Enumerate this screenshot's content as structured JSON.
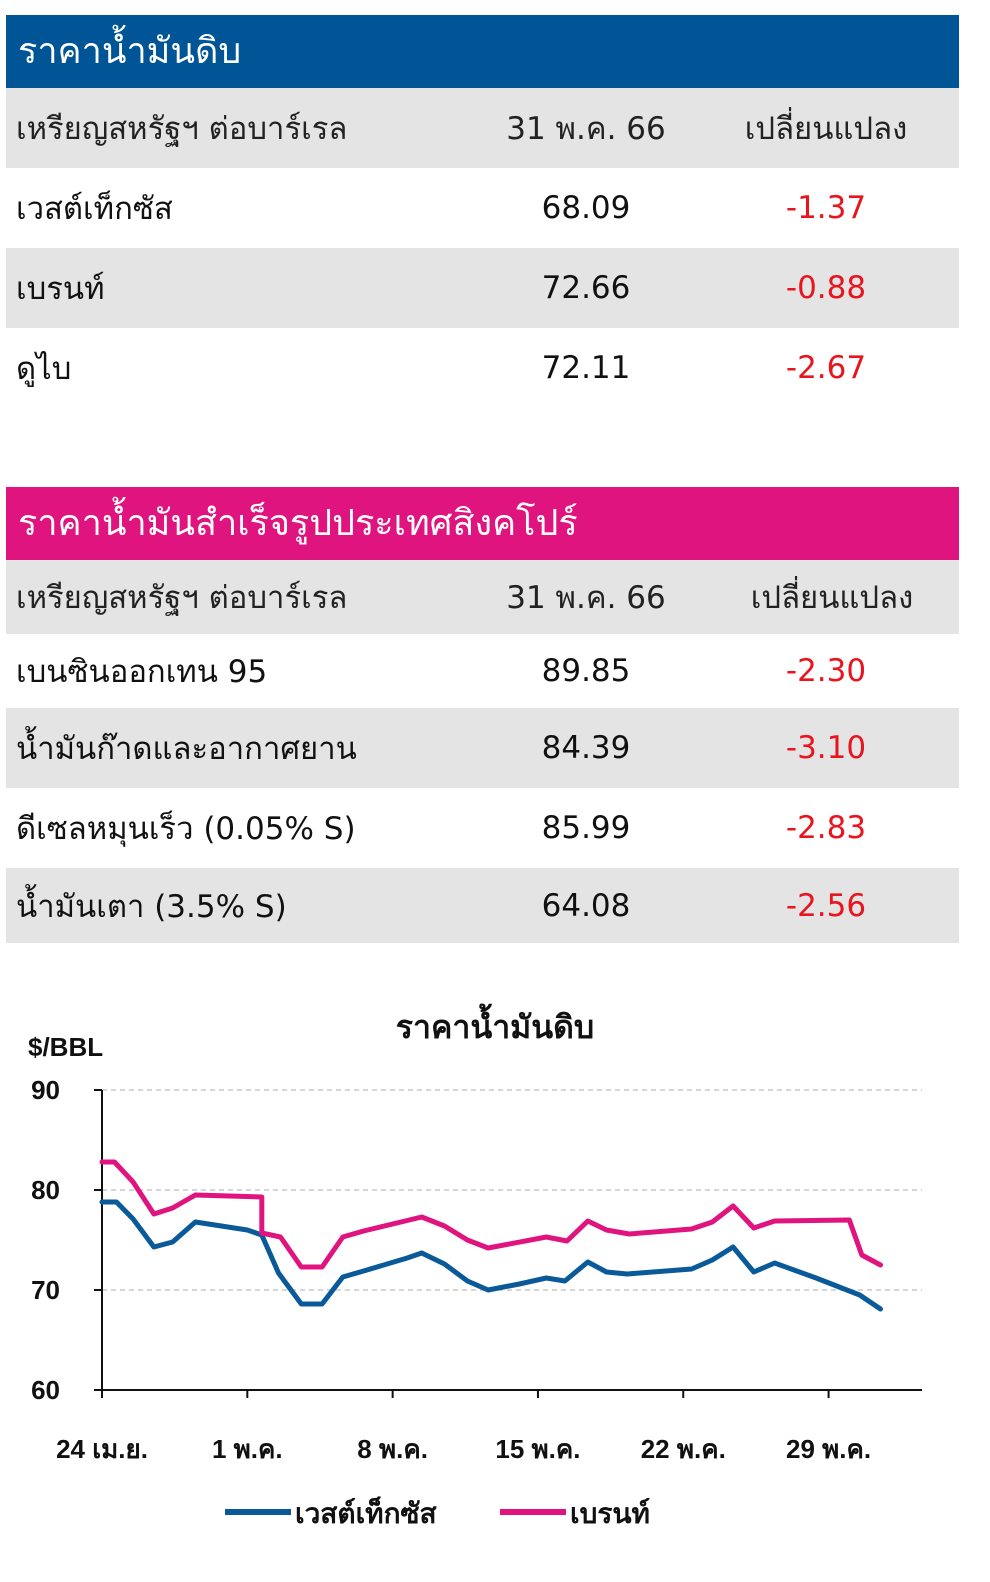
{
  "crude": {
    "title": "ราคาน้ำมันดิบ",
    "header": {
      "name": "เหรียญสหรัฐฯ ต่อบาร์เรล",
      "date": "31 พ.ค. 66",
      "change": "เปลี่ยนแปลง"
    },
    "rows": [
      {
        "name": "เวสต์เท็กซัส",
        "value": "68.09",
        "change": "-1.37"
      },
      {
        "name": "เบรนท์",
        "value": "72.66",
        "change": "-0.88"
      },
      {
        "name": "ดูไบ",
        "value": "72.11",
        "change": "-2.67"
      }
    ]
  },
  "singapore": {
    "title": "ราคาน้ำมันสำเร็จรูปประเทศสิงคโปร์",
    "header": {
      "name": "เหรียญสหรัฐฯ ต่อบาร์เรล",
      "date": "31 พ.ค. 66",
      "change": "เปลี่ยนแปลง"
    },
    "rows": [
      {
        "name": "เบนซินออกเทน 95",
        "value": "89.85",
        "change": "-2.30"
      },
      {
        "name": "น้ำมันก๊าดและอากาศยาน",
        "value": "84.39",
        "change": "-3.10"
      },
      {
        "name": "ดีเซลหมุนเร็ว (0.05% S)",
        "value": "85.99",
        "change": "-2.83"
      },
      {
        "name": "น้ำมันเตา (3.5% S)",
        "value": "64.08",
        "change": "-2.56"
      }
    ]
  },
  "colors": {
    "crude_header": "#005596",
    "singapore_header": "#e0147f",
    "negative": "#e8141e",
    "wti_line": "#0a5a9a",
    "brent_line": "#e0147f"
  },
  "chart_data": {
    "type": "line",
    "title": "ราคาน้ำมันดิบ",
    "ylabel": "$/BBL",
    "xlabel": "",
    "ylim": [
      60,
      90
    ],
    "yticks": [
      60,
      70,
      80,
      90
    ],
    "xticks": [
      {
        "day": 0,
        "label": "24 เม.ย."
      },
      {
        "day": 7,
        "label": "1 พ.ค."
      },
      {
        "day": 14,
        "label": "8 พ.ค."
      },
      {
        "day": 21,
        "label": "15 พ.ค."
      },
      {
        "day": 28,
        "label": "22 พ.ค."
      },
      {
        "day": 35,
        "label": "29 พ.ค."
      }
    ],
    "xlim": [
      0,
      39.5
    ],
    "grid": "horizontal dashed",
    "legend_position": "bottom",
    "series": [
      {
        "name": "เวสต์เท็กซัส",
        "color": "#0a5a9a",
        "points": [
          [
            0,
            78.8
          ],
          [
            0.7,
            78.8
          ],
          [
            1.5,
            77.1
          ],
          [
            2.5,
            74.3
          ],
          [
            3.4,
            74.8
          ],
          [
            4.5,
            76.8
          ],
          [
            7,
            76.0
          ],
          [
            7.7,
            75.5
          ],
          [
            8.5,
            71.7
          ],
          [
            9.6,
            68.6
          ],
          [
            10.6,
            68.6
          ],
          [
            11.6,
            71.3
          ],
          [
            12.6,
            71.9
          ],
          [
            14.7,
            73.2
          ],
          [
            15.4,
            73.7
          ],
          [
            16.5,
            72.6
          ],
          [
            17.6,
            70.9
          ],
          [
            18.6,
            70.0
          ],
          [
            20.1,
            70.6
          ],
          [
            21.4,
            71.2
          ],
          [
            22.3,
            70.9
          ],
          [
            23.4,
            72.8
          ],
          [
            24.3,
            71.8
          ],
          [
            25.3,
            71.6
          ],
          [
            28.4,
            72.1
          ],
          [
            29.4,
            73.0
          ],
          [
            30.4,
            74.3
          ],
          [
            31.4,
            71.8
          ],
          [
            32.4,
            72.7
          ],
          [
            34.4,
            71.2
          ],
          [
            36.5,
            69.5
          ],
          [
            37.5,
            68.1
          ]
        ]
      },
      {
        "name": "เบรนท์",
        "color": "#e0147f",
        "points": [
          [
            0,
            82.8
          ],
          [
            0.6,
            82.8
          ],
          [
            1.5,
            80.8
          ],
          [
            2.5,
            77.6
          ],
          [
            3.4,
            78.2
          ],
          [
            4.5,
            79.5
          ],
          [
            7.7,
            79.3
          ],
          [
            7.7,
            75.7
          ],
          [
            8.6,
            75.3
          ],
          [
            9.6,
            72.3
          ],
          [
            10.6,
            72.3
          ],
          [
            11.6,
            75.3
          ],
          [
            12.6,
            75.9
          ],
          [
            14.6,
            76.9
          ],
          [
            15.4,
            77.3
          ],
          [
            16.5,
            76.4
          ],
          [
            17.6,
            75.0
          ],
          [
            18.6,
            74.2
          ],
          [
            21.4,
            75.3
          ],
          [
            22.4,
            74.9
          ],
          [
            23.4,
            76.9
          ],
          [
            24.3,
            76.0
          ],
          [
            25.4,
            75.6
          ],
          [
            28.4,
            76.1
          ],
          [
            29.4,
            76.8
          ],
          [
            30.4,
            78.4
          ],
          [
            31.4,
            76.2
          ],
          [
            32.4,
            76.9
          ],
          [
            36.0,
            77.0
          ],
          [
            36.6,
            73.5
          ],
          [
            37.5,
            72.5
          ]
        ]
      }
    ]
  }
}
